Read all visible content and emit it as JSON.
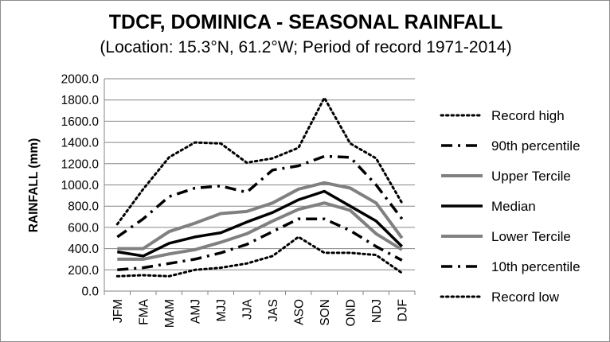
{
  "chart_data": {
    "type": "line",
    "title": "TDCF, DOMINICA - SEASONAL RAINFALL",
    "subtitle": "(Location: 15.3°N, 61.2°W; Period of record 1971-2014)",
    "xlabel": "",
    "ylabel": "RAINFALL (mm)",
    "ylim": [
      0,
      2000
    ],
    "ytick_step": 200,
    "ytick_labels": [
      "0.0",
      "200.0",
      "400.0",
      "600.0",
      "800.0",
      "1000.0",
      "1200.0",
      "1400.0",
      "1600.0",
      "1800.0",
      "2000.0"
    ],
    "categories": [
      "JFM",
      "FMA",
      "MAM",
      "AMJ",
      "MJJ",
      "JJA",
      "JAS",
      "ASO",
      "SON",
      "OND",
      "NDJ",
      "DJF"
    ],
    "grid": true,
    "legend_position": "right",
    "series": [
      {
        "name": "Record high",
        "color": "#000000",
        "style": "dotted",
        "values": [
          630,
          960,
          1260,
          1400,
          1390,
          1210,
          1250,
          1350,
          1820,
          1390,
          1250,
          830
        ]
      },
      {
        "name": "90th percentile",
        "color": "#000000",
        "style": "dashdot",
        "values": [
          510,
          680,
          890,
          970,
          990,
          930,
          1140,
          1180,
          1270,
          1260,
          1000,
          680
        ]
      },
      {
        "name": "Upper Tercile",
        "color": "#808080",
        "style": "solid",
        "values": [
          400,
          400,
          560,
          640,
          730,
          750,
          830,
          960,
          1020,
          970,
          830,
          500
        ]
      },
      {
        "name": "Median",
        "color": "#000000",
        "style": "solid",
        "values": [
          370,
          330,
          450,
          510,
          550,
          650,
          740,
          860,
          940,
          800,
          660,
          420
        ]
      },
      {
        "name": "Lower Tercile",
        "color": "#808080",
        "style": "solid",
        "values": [
          300,
          300,
          350,
          390,
          460,
          540,
          660,
          770,
          830,
          760,
          540,
          390
        ]
      },
      {
        "name": "10th percentile",
        "color": "#000000",
        "style": "dashdot",
        "values": [
          200,
          220,
          260,
          300,
          360,
          440,
          560,
          680,
          680,
          570,
          420,
          290
        ]
      },
      {
        "name": "Record low",
        "color": "#000000",
        "style": "dotted",
        "values": [
          140,
          150,
          140,
          200,
          220,
          260,
          330,
          510,
          360,
          360,
          340,
          170
        ]
      }
    ]
  }
}
